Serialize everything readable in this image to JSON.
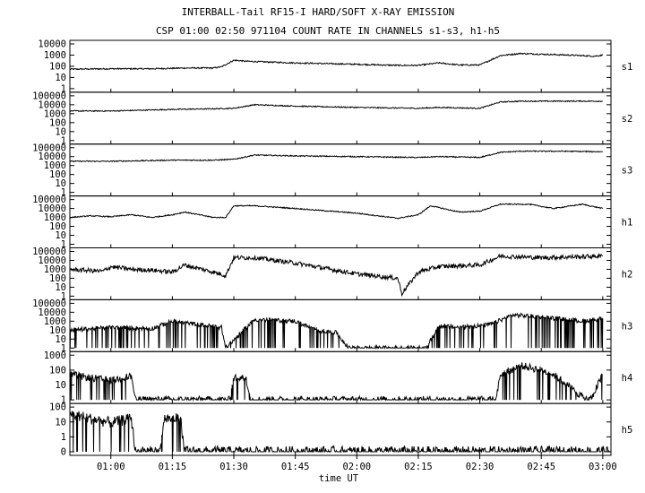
{
  "chart_data": {
    "type": "line",
    "title": "INTERBALL-Tail RF15-I HARD/SOFT X-RAY EMISSION",
    "subtitle": "CSP 01:00 02:50 971104  COUNT RATE IN CHANNELS s1-s3, h1-h5",
    "xlabel": "time UT",
    "x_ticks": [
      "01:00",
      "01:15",
      "01:30",
      "01:45",
      "02:00",
      "02:15",
      "02:30",
      "02:45",
      "03:00"
    ],
    "xlim": [
      "00:50",
      "03:02"
    ],
    "yscale": "log",
    "grid": false,
    "panels": [
      {
        "name": "s1",
        "ylim": [
          1,
          10000
        ],
        "y_ticks": [
          "1",
          "10",
          "100",
          "1000",
          "10000"
        ],
        "series": [
          {
            "x": [
              "00:50",
              "01:00",
              "01:10",
              "01:18",
              "01:25",
              "01:27",
              "01:30",
              "01:33",
              "01:45",
              "02:00",
              "02:10",
              "02:15",
              "02:20",
              "02:25",
              "02:30",
              "02:35",
              "02:40",
              "02:45",
              "02:52",
              "02:58",
              "03:00"
            ],
            "values": [
              55,
              60,
              60,
              70,
              70,
              90,
              350,
              280,
              200,
              150,
              120,
              120,
              200,
              130,
              130,
              900,
              1400,
              1200,
              1000,
              800,
              1000
            ]
          }
        ]
      },
      {
        "name": "s2",
        "ylim": [
          1,
          100000
        ],
        "y_ticks": [
          "1",
          "10",
          "100",
          "1000",
          "10000",
          "100000"
        ],
        "series": [
          {
            "x": [
              "00:50",
              "01:00",
              "01:15",
              "01:25",
              "01:30",
              "01:35",
              "01:45",
              "02:00",
              "02:15",
              "02:20",
              "02:30",
              "02:35",
              "02:40",
              "02:50",
              "03:00"
            ],
            "values": [
              2000,
              2000,
              3000,
              3500,
              4000,
              10000,
              7000,
              5000,
              4000,
              5000,
              4000,
              20000,
              25000,
              25000,
              25000
            ]
          }
        ]
      },
      {
        "name": "s3",
        "ylim": [
          1,
          100000
        ],
        "y_ticks": [
          "1",
          "10",
          "100",
          "1000",
          "10000",
          "100000"
        ],
        "series": [
          {
            "x": [
              "00:50",
              "01:00",
              "01:15",
              "01:25",
              "01:30",
              "01:35",
              "01:45",
              "02:00",
              "02:15",
              "02:20",
              "02:30",
              "02:35",
              "02:40",
              "02:50",
              "03:00"
            ],
            "values": [
              3000,
              3000,
              4000,
              4000,
              5000,
              15000,
              12000,
              10000,
              8000,
              10000,
              8000,
              30000,
              40000,
              40000,
              35000
            ]
          }
        ]
      },
      {
        "name": "h1",
        "ylim": [
          1,
          100000
        ],
        "y_ticks": [
          "1",
          "10",
          "100",
          "1000",
          "10000",
          "100000"
        ],
        "series": [
          {
            "x": [
              "00:50",
              "00:55",
              "01:00",
              "01:05",
              "01:10",
              "01:15",
              "01:18",
              "01:25",
              "01:28",
              "01:30",
              "01:35",
              "01:45",
              "02:00",
              "02:10",
              "02:15",
              "02:18",
              "02:25",
              "02:30",
              "02:35",
              "02:42",
              "02:48",
              "02:55",
              "03:00"
            ],
            "values": [
              1000,
              1500,
              1200,
              2000,
              1000,
              2000,
              4000,
              1000,
              1000,
              20000,
              20000,
              10000,
              3000,
              800,
              2000,
              20000,
              4000,
              5000,
              30000,
              30000,
              10000,
              30000,
              10000
            ]
          }
        ]
      },
      {
        "name": "h2",
        "ylim": [
          1,
          100000
        ],
        "y_ticks": [
          "1",
          "10",
          "100",
          "1000",
          "10000",
          "100000"
        ],
        "series": [
          {
            "x": [
              "00:50",
              "00:58",
              "01:00",
              "01:05",
              "01:10",
              "01:15",
              "01:18",
              "01:25",
              "01:28",
              "01:30",
              "01:35",
              "01:45",
              "02:00",
              "02:10",
              "02:11",
              "02:15",
              "02:20",
              "02:30",
              "02:35",
              "02:45",
              "03:00"
            ],
            "values": [
              1000,
              600,
              2000,
              1000,
              800,
              500,
              3000,
              500,
              200,
              20000,
              20000,
              5000,
              300,
              100,
              2,
              500,
              2000,
              3000,
              30000,
              20000,
              30000
            ]
          }
        ]
      },
      {
        "name": "h3",
        "ylim": [
          1,
          100000
        ],
        "y_ticks": [
          "1",
          "10",
          "100",
          "1000",
          "10000",
          "100000"
        ],
        "series": [
          {
            "x": [
              "00:50",
              "01:00",
              "01:10",
              "01:15",
              "01:20",
              "01:27",
              "01:28",
              "01:35",
              "01:45",
              "01:50",
              "01:55",
              "01:58",
              "02:17",
              "02:20",
              "02:25",
              "02:28",
              "02:30",
              "02:33",
              "02:38",
              "02:45",
              "02:55",
              "03:00"
            ],
            "values": [
              100,
              200,
              150,
              1000,
              500,
              200,
              1,
              1500,
              1000,
              100,
              50,
              1,
              1,
              300,
              200,
              300,
              300,
              500,
              5000,
              3000,
              1000,
              2000
            ]
          }
        ]
      },
      {
        "name": "h4",
        "ylim": [
          1,
          1000
        ],
        "y_ticks": [
          "1",
          "10",
          "100",
          "1000"
        ],
        "series": [
          {
            "x": [
              "00:50",
              "00:55",
              "01:00",
              "01:05",
              "01:06",
              "01:29",
              "01:30",
              "01:33",
              "01:34",
              "02:34",
              "02:35",
              "02:40",
              "02:45",
              "02:48",
              "02:56",
              "02:57",
              "03:00"
            ],
            "values": [
              50,
              30,
              20,
              40,
              1,
              1,
              30,
              30,
              1,
              1,
              50,
              200,
              100,
              50,
              1,
              1,
              50
            ]
          }
        ]
      },
      {
        "name": "h5",
        "ylim": [
          1,
          100
        ],
        "y_ticks": [
          "0",
          "1",
          "10",
          "100"
        ],
        "series": [
          {
            "x": [
              "00:50",
              "00:55",
              "01:00",
              "01:05",
              "01:06",
              "01:12",
              "01:13",
              "01:17",
              "01:18",
              "03:02"
            ],
            "values": [
              50,
              30,
              20,
              30,
              1,
              1,
              30,
              30,
              1,
              1
            ]
          }
        ]
      }
    ]
  }
}
